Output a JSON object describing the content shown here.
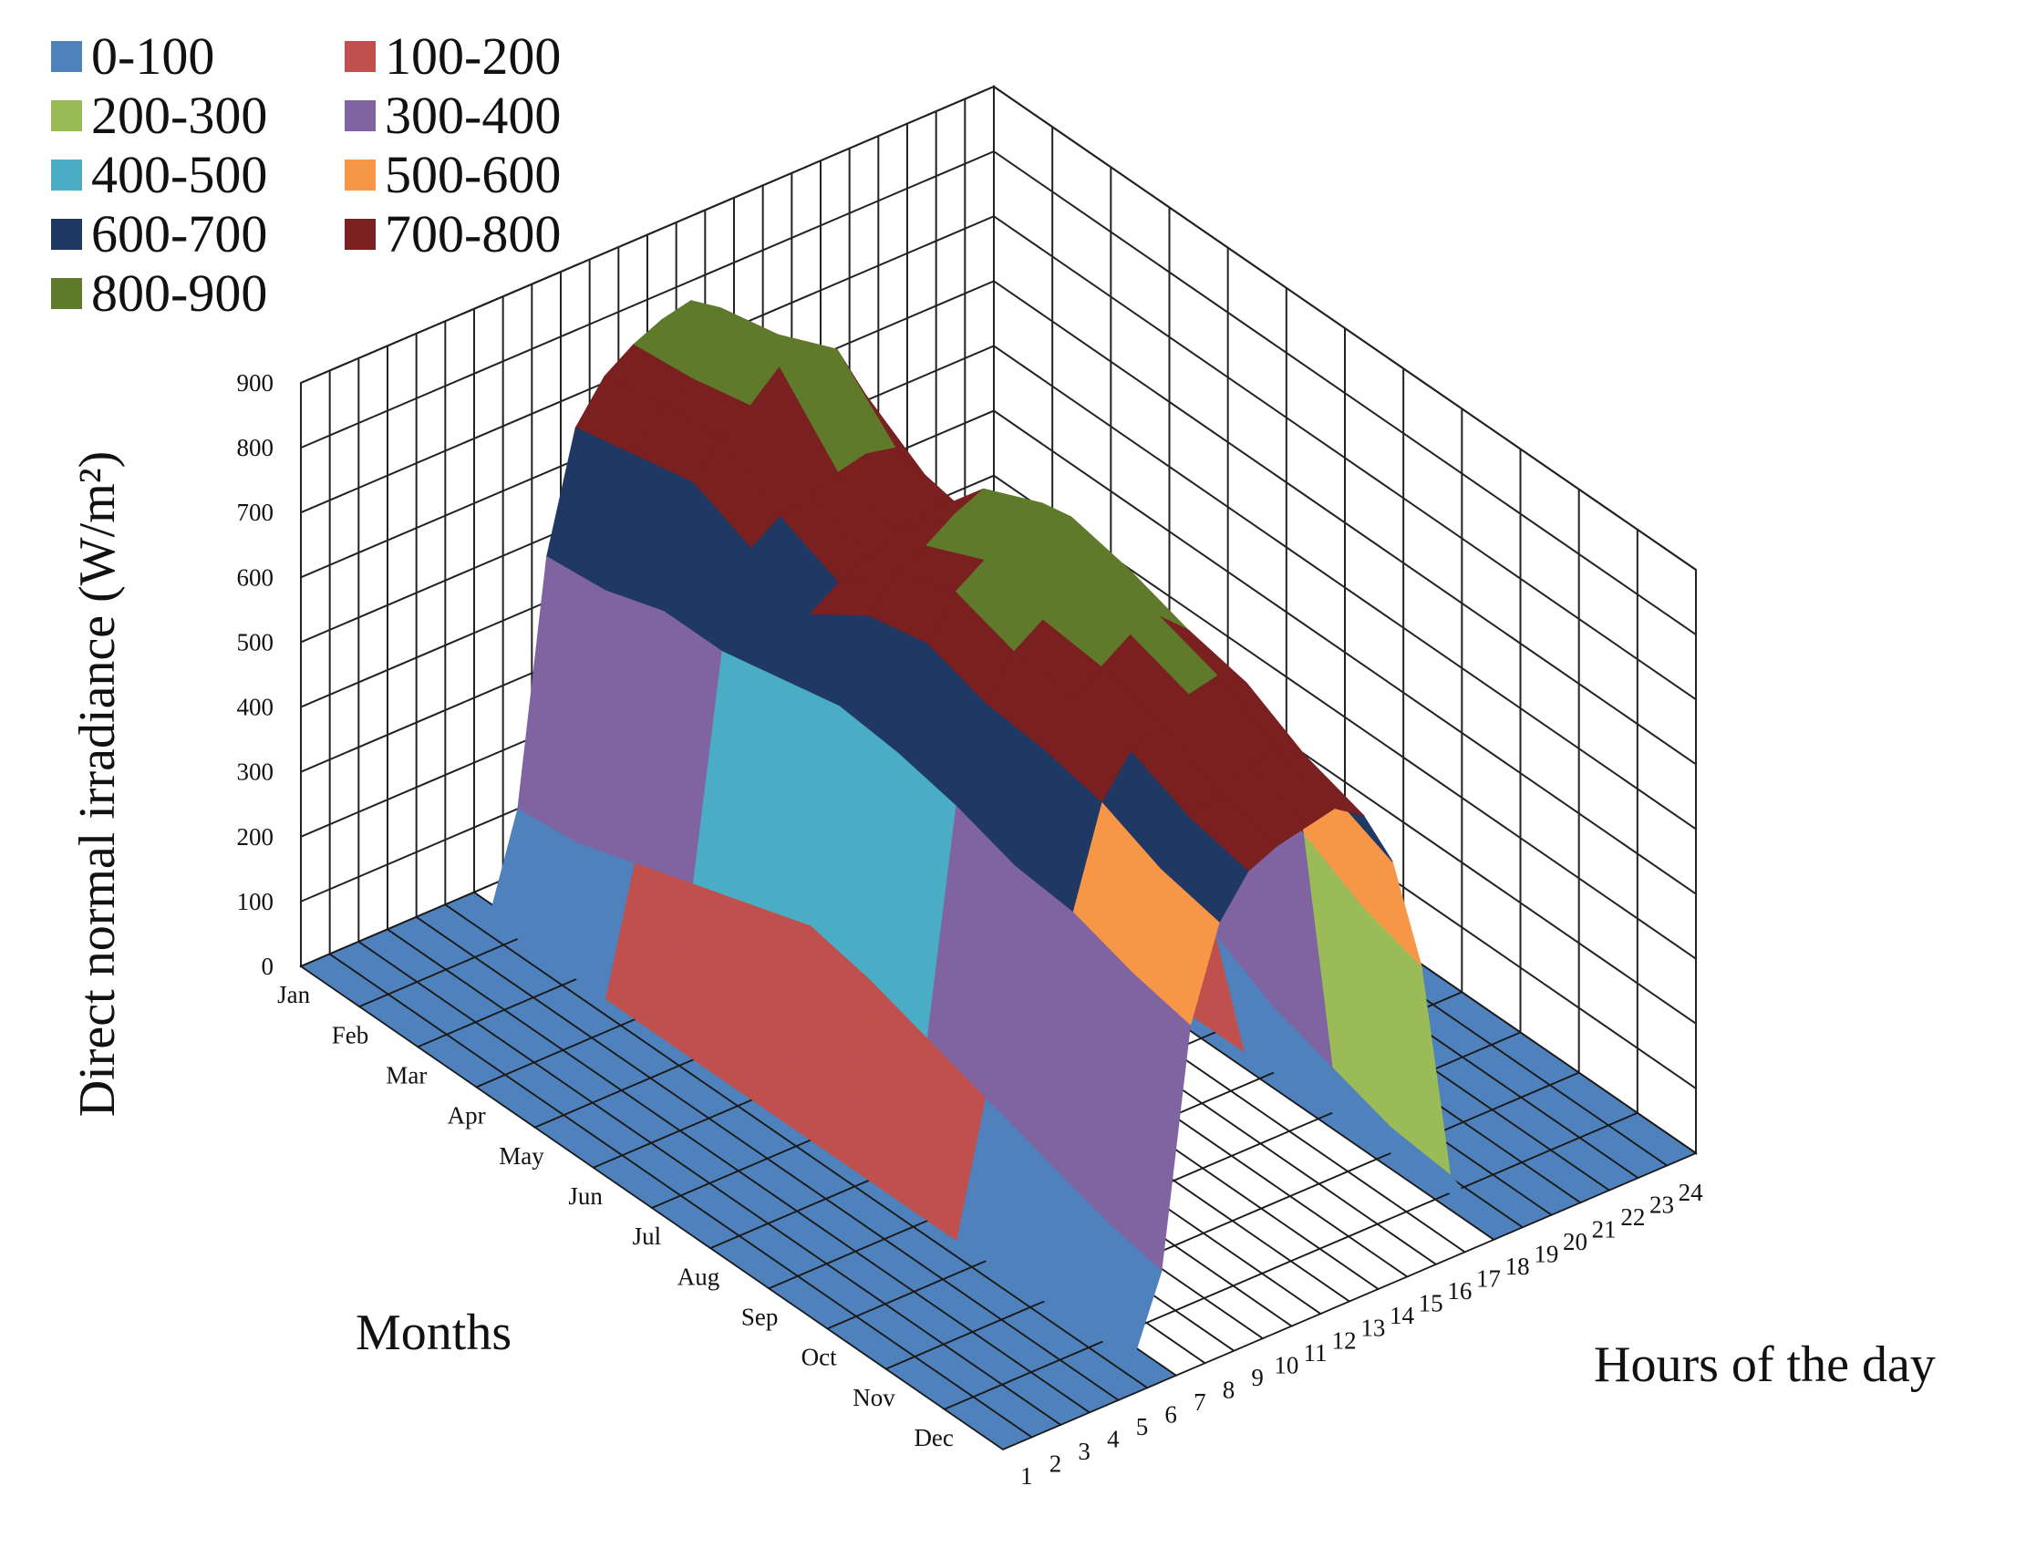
{
  "chart_data": {
    "type": "surface3d",
    "title": "",
    "zlabel": "Direct normal irradiance (W/m²)",
    "xlabel": "Months",
    "ylabel": "Hours of the day",
    "zlim": [
      0,
      900
    ],
    "z_ticks": [
      "0",
      "100",
      "200",
      "300",
      "400",
      "500",
      "600",
      "700",
      "800",
      "900"
    ],
    "months": [
      "Jan",
      "Feb",
      "Mar",
      "Apr",
      "May",
      "Jun",
      "Jul",
      "Aug",
      "Sep",
      "Oct",
      "Nov",
      "Dec"
    ],
    "hours": [
      "1",
      "2",
      "3",
      "4",
      "5",
      "6",
      "7",
      "8",
      "9",
      "10",
      "11",
      "12",
      "13",
      "14",
      "15",
      "16",
      "17",
      "18",
      "19",
      "20",
      "21",
      "22",
      "23",
      "24"
    ],
    "grid": true,
    "legend_position": "top-left",
    "legend": [
      {
        "label": "0-100",
        "color": "#4f81bd"
      },
      {
        "label": "100-200",
        "color": "#c0504d"
      },
      {
        "label": "200-300",
        "color": "#9bbb59"
      },
      {
        "label": "300-400",
        "color": "#8064a2"
      },
      {
        "label": "400-500",
        "color": "#4bacc6"
      },
      {
        "label": "500-600",
        "color": "#f79646"
      },
      {
        "label": "600-700",
        "color": "#1f3864"
      },
      {
        "label": "700-800",
        "color": "#7a2020"
      },
      {
        "label": "800-900",
        "color": "#5f7a2b"
      }
    ],
    "values": [
      [
        0,
        0,
        0,
        0,
        0,
        0,
        150,
        520,
        700,
        760,
        790,
        810,
        820,
        790,
        720,
        550,
        160,
        0,
        0,
        0,
        0,
        0,
        0,
        0
      ],
      [
        0,
        0,
        0,
        0,
        0,
        0,
        160,
        530,
        720,
        780,
        800,
        830,
        840,
        810,
        740,
        560,
        180,
        0,
        0,
        0,
        0,
        0,
        0,
        0
      ],
      [
        0,
        0,
        0,
        0,
        0,
        0,
        190,
        560,
        740,
        790,
        820,
        860,
        880,
        850,
        760,
        560,
        200,
        0,
        0,
        0,
        0,
        0,
        0,
        0
      ],
      [
        0,
        0,
        0,
        0,
        0,
        0,
        220,
        560,
        700,
        730,
        740,
        760,
        770,
        760,
        700,
        560,
        210,
        0,
        0,
        0,
        0,
        0,
        0,
        0
      ],
      [
        0,
        0,
        0,
        0,
        0,
        0,
        250,
        580,
        660,
        690,
        710,
        730,
        740,
        720,
        680,
        540,
        230,
        0,
        0,
        0,
        0,
        0,
        0,
        0
      ],
      [
        0,
        0,
        0,
        0,
        0,
        0,
        280,
        600,
        720,
        770,
        790,
        820,
        840,
        800,
        730,
        600,
        250,
        0,
        0,
        0,
        0,
        0,
        0,
        0
      ],
      [
        0,
        0,
        0,
        0,
        0,
        0,
        260,
        590,
        740,
        800,
        830,
        860,
        880,
        840,
        760,
        600,
        230,
        0,
        0,
        0,
        0,
        0,
        0,
        0
      ],
      [
        0,
        0,
        0,
        0,
        0,
        0,
        230,
        570,
        710,
        770,
        800,
        840,
        860,
        820,
        740,
        580,
        200,
        0,
        0,
        0,
        0,
        0,
        0,
        0
      ],
      [
        0,
        0,
        0,
        0,
        0,
        0,
        200,
        540,
        700,
        760,
        790,
        820,
        830,
        790,
        720,
        540,
        150,
        0,
        0,
        0,
        0,
        0,
        0,
        0
      ],
      [
        0,
        0,
        0,
        0,
        0,
        0,
        170,
        530,
        680,
        740,
        770,
        790,
        800,
        770,
        680,
        500,
        120,
        0,
        0,
        0,
        0,
        0,
        0,
        0
      ],
      [
        0,
        0,
        0,
        0,
        0,
        0,
        140,
        500,
        640,
        700,
        720,
        740,
        750,
        720,
        640,
        450,
        90,
        0,
        0,
        0,
        0,
        0,
        0,
        0
      ],
      [
        0,
        0,
        0,
        0,
        0,
        0,
        120,
        480,
        620,
        680,
        700,
        710,
        720,
        690,
        600,
        420,
        80,
        0,
        0,
        0,
        0,
        0,
        0,
        0
      ]
    ]
  }
}
